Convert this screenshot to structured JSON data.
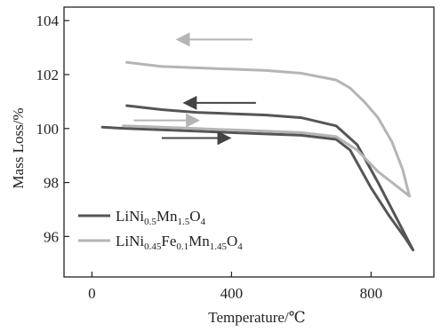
{
  "chart_data": {
    "type": "line",
    "xlabel": "Temperature/℃",
    "ylabel": "Mass Loss/%",
    "xlim": [
      -80,
      980
    ],
    "ylim": [
      94.5,
      104.5
    ],
    "xticks": [
      0,
      400,
      800
    ],
    "yticks": [
      96,
      98,
      100,
      102,
      104
    ],
    "grid": false,
    "legend_position": "bottom-left",
    "series": [
      {
        "name": "LiNi0.5Mn1.5O4",
        "legend": {
          "base": "LiNi",
          "s1": "0.5",
          "m1": "Mn",
          "s2": "1.5",
          "m2": "O",
          "s3": "4"
        },
        "color": "#555555",
        "segments": [
          {
            "direction": "heating",
            "points": [
              [
                30,
                100.05
              ],
              [
                100,
                100.0
              ],
              [
                200,
                99.95
              ],
              [
                300,
                99.9
              ],
              [
                400,
                99.85
              ],
              [
                500,
                99.8
              ],
              [
                600,
                99.75
              ],
              [
                700,
                99.6
              ],
              [
                740,
                99.2
              ],
              [
                800,
                97.8
              ],
              [
                850,
                96.8
              ],
              [
                900,
                95.9
              ],
              [
                920,
                95.5
              ]
            ]
          },
          {
            "direction": "cooling",
            "points": [
              [
                920,
                95.5
              ],
              [
                880,
                96.5
              ],
              [
                820,
                98.0
              ],
              [
                760,
                99.4
              ],
              [
                700,
                100.1
              ],
              [
                600,
                100.4
              ],
              [
                500,
                100.5
              ],
              [
                400,
                100.55
              ],
              [
                300,
                100.6
              ],
              [
                200,
                100.7
              ],
              [
                100,
                100.85
              ]
            ]
          }
        ]
      },
      {
        "name": "LiNi0.45Fe0.1Mn1.45O4",
        "legend": {
          "base": "LiNi",
          "s1": "0.45",
          "m1": "Fe",
          "s2": "0.1",
          "m2": "Mn",
          "s3": "1.45",
          "m3": "O",
          "s4": "4"
        },
        "color": "#b5b5b5",
        "segments": [
          {
            "direction": "heating",
            "points": [
              [
                90,
                100.1
              ],
              [
                200,
                100.05
              ],
              [
                300,
                100.0
              ],
              [
                400,
                99.95
              ],
              [
                500,
                99.9
              ],
              [
                600,
                99.85
              ],
              [
                700,
                99.7
              ],
              [
                760,
                99.2
              ],
              [
                820,
                98.4
              ],
              [
                870,
                97.9
              ],
              [
                910,
                97.5
              ]
            ]
          },
          {
            "direction": "cooling",
            "points": [
              [
                910,
                97.5
              ],
              [
                890,
                98.5
              ],
              [
                860,
                99.5
              ],
              [
                820,
                100.4
              ],
              [
                780,
                101.0
              ],
              [
                740,
                101.5
              ],
              [
                700,
                101.8
              ],
              [
                600,
                102.05
              ],
              [
                500,
                102.15
              ],
              [
                400,
                102.2
              ],
              [
                300,
                102.25
              ],
              [
                200,
                102.3
              ],
              [
                100,
                102.45
              ]
            ]
          }
        ]
      }
    ],
    "arrows": [
      {
        "color": "#b5b5b5",
        "from": [
          460,
          103.3
        ],
        "to": [
          250,
          103.3
        ]
      },
      {
        "color": "#444444",
        "from": [
          470,
          100.95
        ],
        "to": [
          270,
          100.95
        ]
      },
      {
        "color": "#b5b5b5",
        "from": [
          120,
          100.3
        ],
        "to": [
          300,
          100.3
        ]
      },
      {
        "color": "#444444",
        "from": [
          200,
          99.65
        ],
        "to": [
          390,
          99.65
        ]
      }
    ]
  }
}
